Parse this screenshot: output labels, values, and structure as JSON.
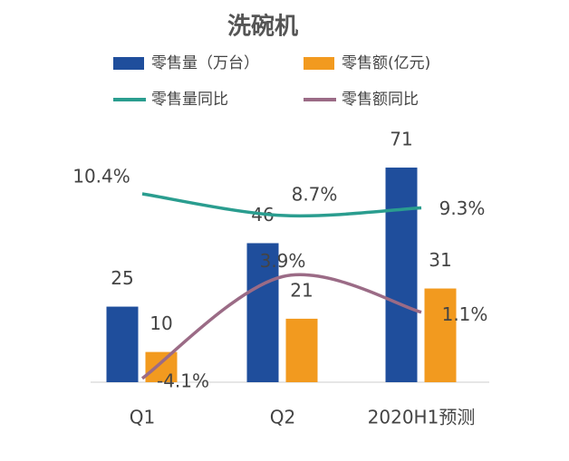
{
  "chart_data": {
    "type": "bar-line",
    "title": "洗碗机",
    "categories": [
      "Q1",
      "Q2",
      "2020H1预测"
    ],
    "series": [
      {
        "name": "零售量（万台）",
        "type": "bar",
        "color": "#1f4e9c",
        "values": [
          25,
          46,
          71
        ]
      },
      {
        "name": "零售额(亿元)",
        "type": "bar",
        "color": "#f29a1f",
        "values": [
          10,
          21,
          31
        ]
      },
      {
        "name": "零售量同比",
        "type": "line",
        "axis": "y2",
        "color": "#2a9d8f",
        "values": [
          10.4,
          8.7,
          9.3
        ],
        "value_labels": [
          "10.4%",
          "8.7%",
          "9.3%"
        ]
      },
      {
        "name": "零售额同比",
        "type": "line",
        "axis": "y2",
        "color": "#9b6b86",
        "values": [
          -4.1,
          3.9,
          1.1
        ],
        "value_labels": [
          "-4.1%",
          "3.9%",
          "1.1%"
        ]
      }
    ],
    "ylim": [
      0,
      80
    ],
    "y2lim": [
      -4.4,
      14.6
    ]
  }
}
